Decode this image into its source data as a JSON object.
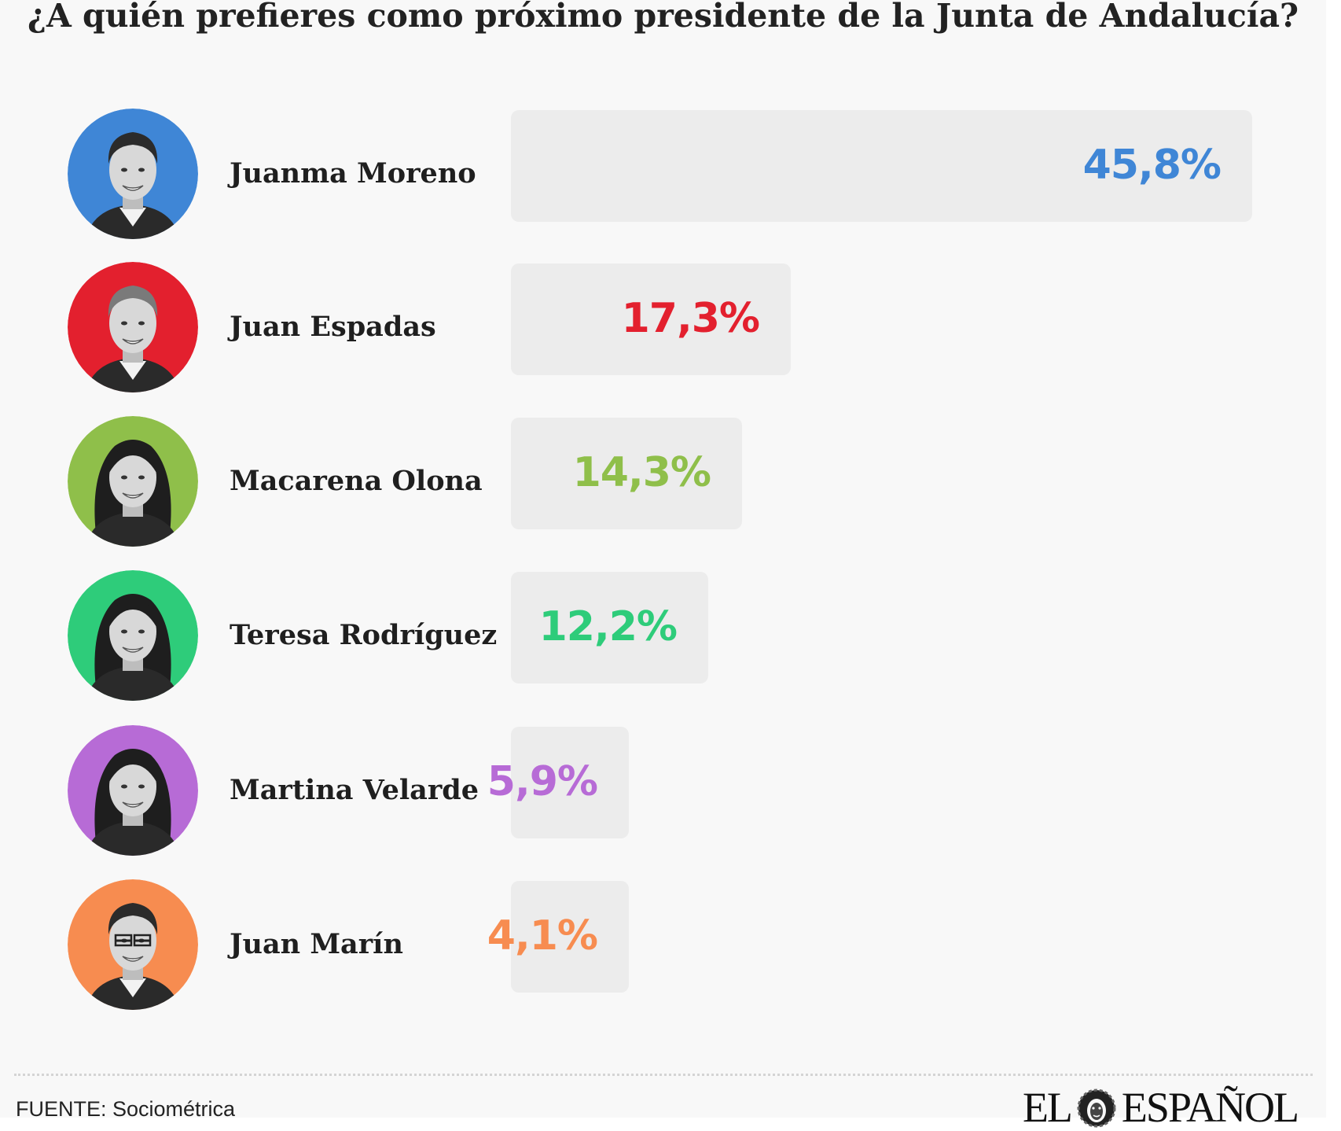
{
  "title": "¿A quién prefieres como próximo presidente de la Junta de Andalucía?",
  "chart_data": {
    "type": "bar",
    "orientation": "horizontal",
    "title": "¿A quién prefieres como próximo presidente de la Junta de Andalucía?",
    "categories": [
      "Juanma Moreno",
      "Juan Espadas",
      "Macarena Olona",
      "Teresa Rodríguez",
      "Martina Velarde",
      "Juan Marín"
    ],
    "values": [
      45.8,
      17.3,
      14.3,
      12.2,
      5.9,
      4.1
    ],
    "value_labels": [
      "45,8%",
      "17,3%",
      "14,3%",
      "12,2%",
      "5,9%",
      "4,1%"
    ],
    "colors": [
      "#3f86d6",
      "#e3202e",
      "#8fbf4a",
      "#2ecc7a",
      "#b76bd6",
      "#f78c50"
    ],
    "bar_background": "#ececec",
    "xlim": [
      0,
      45.8
    ],
    "grid": false,
    "legend": "none"
  },
  "candidates": [
    {
      "name": "Juanma Moreno",
      "value": 45.8,
      "label": "45,8%",
      "color": "#3f86d6"
    },
    {
      "name": "Juan Espadas",
      "value": 17.3,
      "label": "17,3%",
      "color": "#e3202e"
    },
    {
      "name": "Macarena Olona",
      "value": 14.3,
      "label": "14,3%",
      "color": "#8fbf4a"
    },
    {
      "name": "Teresa Rodríguez",
      "value": 12.2,
      "label": "12,2%",
      "color": "#2ecc7a"
    },
    {
      "name": "Martina Velarde",
      "value": 5.9,
      "label": "5,9%",
      "color": "#b76bd6"
    },
    {
      "name": "Juan Marín",
      "value": 4.1,
      "label": "4,1%",
      "color": "#f78c50"
    }
  ],
  "footer": {
    "source": "FUENTE: Sociométrica",
    "logo_left": "EL",
    "logo_right": "ESPAÑOL",
    "logo_icon": "lion-head-icon"
  }
}
